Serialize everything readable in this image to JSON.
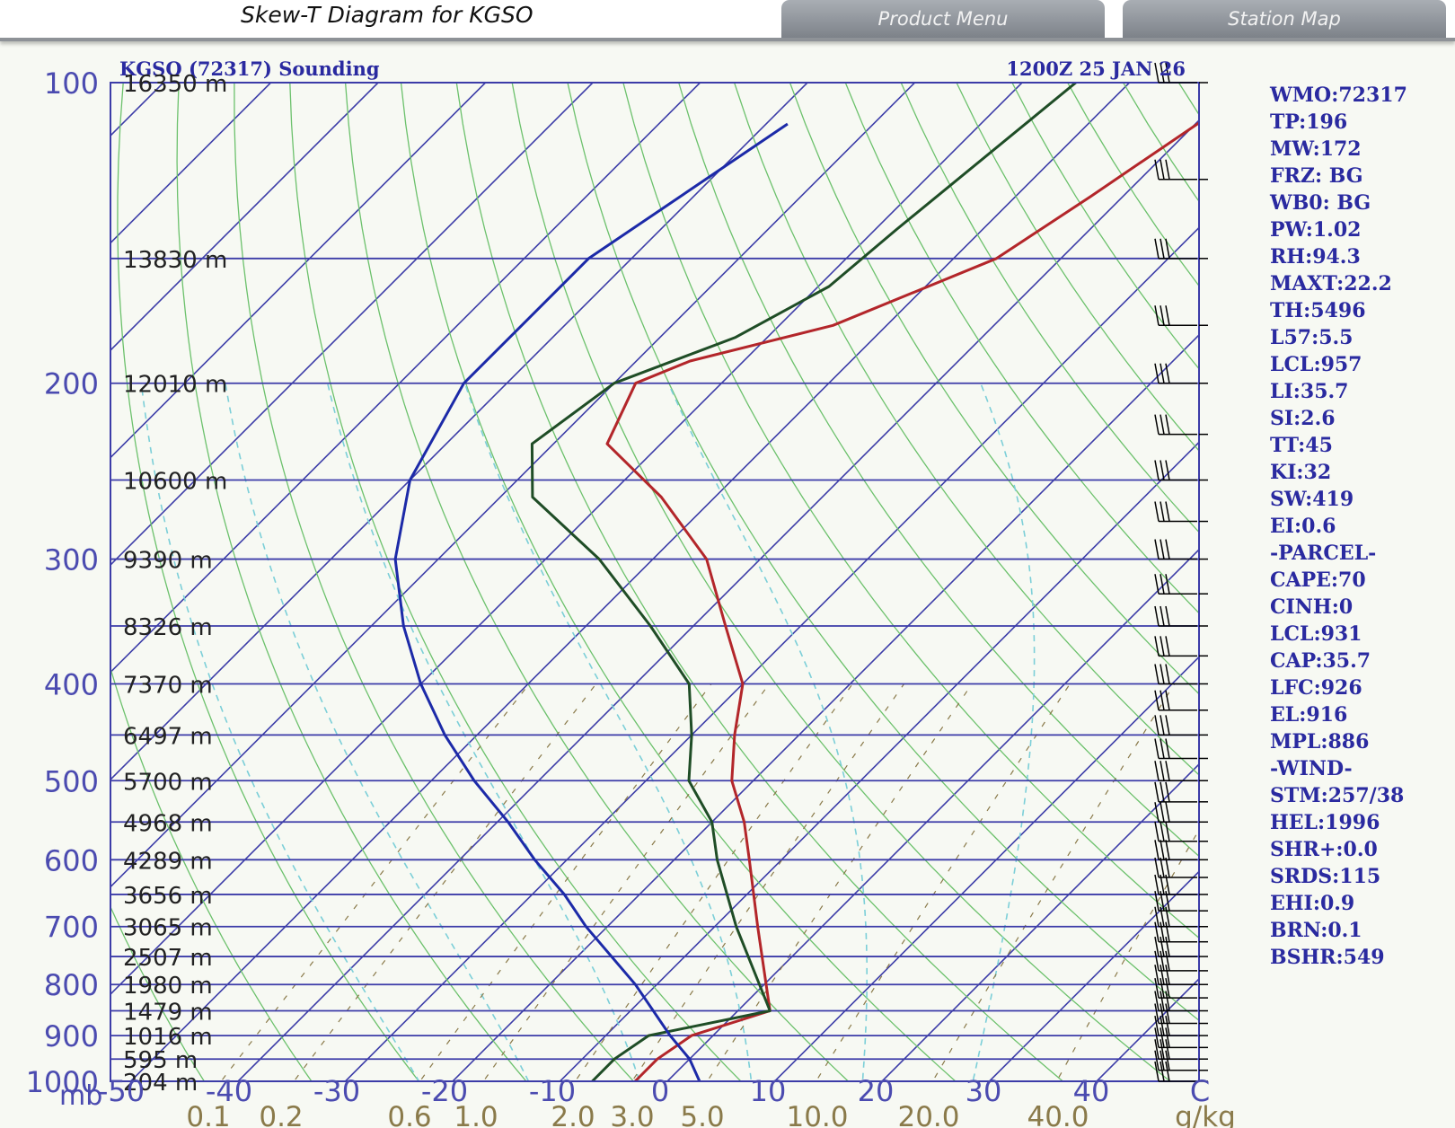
{
  "header": {
    "title": "Skew-T Diagram for KGSO",
    "tabs": [
      "Product Menu",
      "Station Map"
    ]
  },
  "chart_data": {
    "type": "line",
    "title_left": "KGSO (72317) Sounding",
    "title_right": "1200Z 25 JAN 26",
    "pressure_ticks": [
      100,
      200,
      300,
      400,
      500,
      600,
      700,
      800,
      900,
      1000
    ],
    "pressure_unit": "mb",
    "temperature_ticks": [
      -50,
      -40,
      -30,
      -20,
      -10,
      0,
      10,
      20,
      30,
      40
    ],
    "temperature_unit": "C",
    "mixing_ratio_labels": [
      "0.1",
      "0.2",
      "0.6",
      "1.0",
      "2.0",
      "3.0",
      "5.0",
      "10.0",
      "20.0",
      "40.0"
    ],
    "mixing_ratio_unit": "g/kg",
    "height_labels": [
      {
        "p": 100,
        "text": "16350 m"
      },
      {
        "p": 150,
        "text": "13830 m"
      },
      {
        "p": 200,
        "text": "12010 m"
      },
      {
        "p": 250,
        "text": "10600 m"
      },
      {
        "p": 300,
        "text": "9390 m"
      },
      {
        "p": 350,
        "text": "8326 m"
      },
      {
        "p": 400,
        "text": "7370 m"
      },
      {
        "p": 450,
        "text": "6497 m"
      },
      {
        "p": 500,
        "text": "5700 m"
      },
      {
        "p": 550,
        "text": "4968 m"
      },
      {
        "p": 600,
        "text": "4289 m"
      },
      {
        "p": 650,
        "text": "3656 m"
      },
      {
        "p": 700,
        "text": "3065 m"
      },
      {
        "p": 750,
        "text": "2507 m"
      },
      {
        "p": 800,
        "text": "1980 m"
      },
      {
        "p": 850,
        "text": "1479 m"
      },
      {
        "p": 900,
        "text": "1016 m"
      },
      {
        "p": 950,
        "text": "595 m"
      },
      {
        "p": 1000,
        "text": "204 m"
      }
    ],
    "series": [
      {
        "name": "temperature",
        "color": "#b3262a",
        "points": [
          [
            100,
            -38
          ],
          [
            130,
            -43
          ],
          [
            150,
            -46
          ],
          [
            175,
            -55
          ],
          [
            190,
            -65
          ],
          [
            200,
            -68
          ],
          [
            230,
            -65
          ],
          [
            260,
            -55
          ],
          [
            300,
            -45
          ],
          [
            350,
            -37
          ],
          [
            400,
            -30
          ],
          [
            450,
            -26
          ],
          [
            500,
            -22
          ],
          [
            550,
            -17
          ],
          [
            600,
            -13
          ],
          [
            700,
            -6
          ],
          [
            850,
            3
          ],
          [
            900,
            -2
          ],
          [
            950,
            -3
          ],
          [
            1000,
            -3
          ]
        ]
      },
      {
        "name": "dewpoint",
        "color": "#1f4d26",
        "points": [
          [
            100,
            -55
          ],
          [
            140,
            -58
          ],
          [
            160,
            -59
          ],
          [
            180,
            -63
          ],
          [
            200,
            -70
          ],
          [
            230,
            -72
          ],
          [
            260,
            -67
          ],
          [
            300,
            -55
          ],
          [
            350,
            -44
          ],
          [
            400,
            -35
          ],
          [
            450,
            -30
          ],
          [
            500,
            -26
          ],
          [
            550,
            -20
          ],
          [
            600,
            -16
          ],
          [
            700,
            -8
          ],
          [
            850,
            3
          ],
          [
            900,
            -6
          ],
          [
            950,
            -7
          ],
          [
            1000,
            -7
          ]
        ]
      },
      {
        "name": "parcel",
        "color": "#1c2aa8",
        "points": [
          [
            110,
            -78
          ],
          [
            150,
            -84
          ],
          [
            200,
            -84
          ],
          [
            250,
            -80
          ],
          [
            300,
            -74
          ],
          [
            350,
            -67
          ],
          [
            400,
            -60
          ],
          [
            450,
            -53
          ],
          [
            500,
            -46
          ],
          [
            550,
            -39
          ],
          [
            600,
            -33
          ],
          [
            650,
            -27
          ],
          [
            700,
            -22
          ],
          [
            800,
            -12
          ],
          [
            900,
            -4
          ],
          [
            950,
            0
          ],
          [
            1000,
            3
          ]
        ]
      }
    ],
    "indices": [
      "WMO:72317",
      "TP:196",
      "MW:172",
      "FRZ: BG",
      "WB0: BG",
      "PW:1.02",
      "RH:94.3",
      "MAXT:22.2",
      "TH:5496",
      "L57:5.5",
      "LCL:957",
      "LI:35.7",
      "SI:2.6",
      "TT:45",
      "KI:32",
      "SW:419",
      "EI:0.6",
      "-PARCEL-",
      "CAPE:70",
      "CINH:0",
      "LCL:931",
      "CAP:35.7",
      "LFC:926",
      "EL:916",
      "MPL:886",
      "-WIND-",
      "STM:257/38",
      "HEL:1996",
      "SHR+:0.0",
      "SRDS:115",
      "EHI:0.9",
      "BRN:0.1",
      "BSHR:549"
    ],
    "colors": {
      "isobar": "#3c3ca8",
      "isotherm": "#3c3ca8",
      "dry_adiabat": "#6cc16c",
      "moist_adiabat": "#7ccfd8",
      "mixing_ratio": "#8a7a4a",
      "axis_label": "#4b4bb0",
      "index_text": "#2a2aa0"
    }
  }
}
